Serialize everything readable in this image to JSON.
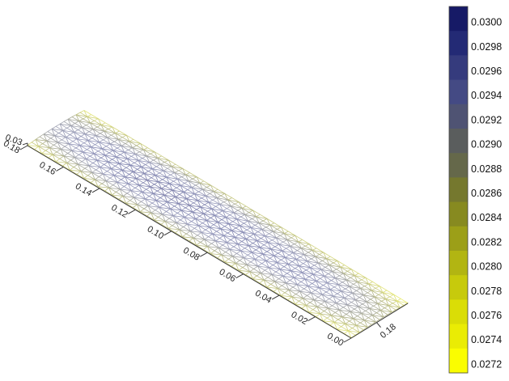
{
  "chart_data": {
    "type": "surface",
    "title": "",
    "xlabel": "",
    "ylabel": "",
    "zlabel": "",
    "z_axis": {
      "range": [
        0.0272,
        0.03
      ],
      "tick_labels": [
        "0.03"
      ]
    },
    "depth_axis": {
      "range": [
        0.0,
        0.18
      ],
      "tick_labels": [
        "0.18",
        "0.16",
        "0.14",
        "0.12",
        "0.10",
        "0.08",
        "0.06",
        "0.04",
        "0.02",
        "0.00"
      ]
    },
    "width_axis": {
      "tick_labels": [
        "0.18"
      ]
    },
    "surface_profile": {
      "depth": [
        0.18,
        0.16,
        0.14,
        0.12,
        0.1,
        0.08,
        0.06,
        0.04,
        0.02,
        0.0
      ],
      "ridge_value": [
        0.0292,
        0.0296,
        0.0299,
        0.03,
        0.0299,
        0.0298,
        0.0297,
        0.0296,
        0.0293,
        0.0286
      ],
      "edge_value": [
        0.0272,
        0.0275,
        0.0276,
        0.0277,
        0.0277,
        0.0277,
        0.0276,
        0.0275,
        0.0274,
        0.0272
      ]
    },
    "colorbar": {
      "min": 0.0272,
      "max": 0.03,
      "labels": [
        "0.0300",
        "0.0298",
        "0.0296",
        "0.0294",
        "0.0292",
        "0.0290",
        "0.0288",
        "0.0286",
        "0.0284",
        "0.0282",
        "0.0280",
        "0.0278",
        "0.0276",
        "0.0274",
        "0.0272"
      ],
      "colors": [
        "#161a66",
        "#232a75",
        "#353b7d",
        "#444a84",
        "#4f5373",
        "#5a5d5d",
        "#65684a",
        "#75782e",
        "#878a20",
        "#9c9f18",
        "#b2b512",
        "#c7ca0c",
        "#dadd06",
        "#eaec04",
        "#fafd00"
      ]
    },
    "grid": false,
    "legend": "colorbar-right"
  }
}
